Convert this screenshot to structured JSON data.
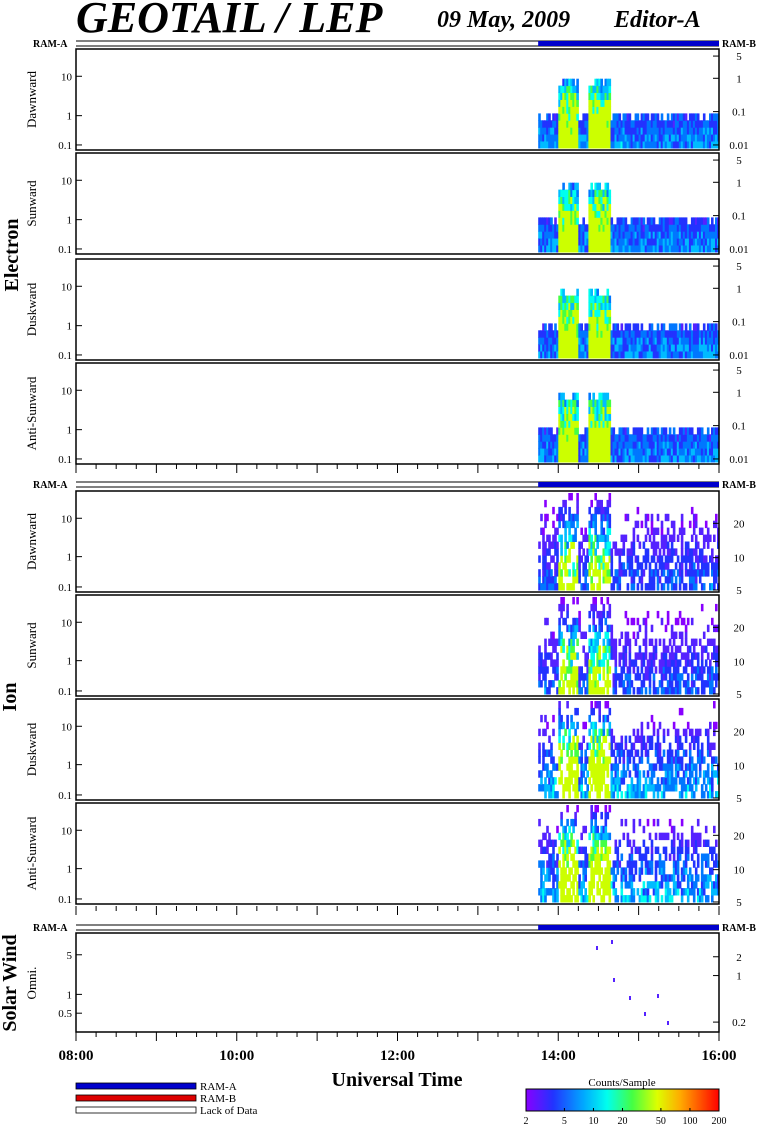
{
  "header": {
    "title": "GEOTAIL / LEP",
    "date": "09 May, 2009",
    "editor": "Editor-A"
  },
  "mode_labels": {
    "ram_a": "RAM-A",
    "ram_b": "RAM-B"
  },
  "sections": {
    "electron": "Electron",
    "ion": "Ion",
    "solar_wind": "Solar Wind"
  },
  "x_axis": {
    "label": "Universal Time",
    "ticks": [
      "08:00",
      "10:00",
      "12:00",
      "14:00",
      "16:00"
    ]
  },
  "legend": {
    "items": [
      {
        "label": "RAM-A",
        "color": "#0000cc"
      },
      {
        "label": "RAM-B",
        "color": "#dd0000"
      },
      {
        "label": "Lack of Data",
        "color": "#ffffff"
      }
    ]
  },
  "colorbar": {
    "title": "Counts/Sample",
    "ticks": [
      "2",
      "5",
      "10",
      "20",
      "50",
      "100",
      "200"
    ]
  },
  "chart_data": {
    "type": "heatmap",
    "time_range": [
      "08:00",
      "16:00"
    ],
    "data_start": "13:45",
    "electron_panels": [
      {
        "name": "Dawnward",
        "left_ticks": [
          "10",
          "1",
          "0.1"
        ],
        "right_ticks": [
          "5",
          "1",
          "0.1",
          "0.01"
        ]
      },
      {
        "name": "Sunward",
        "left_ticks": [
          "10",
          "1",
          "0.1"
        ],
        "right_ticks": [
          "5",
          "1",
          "0.1",
          "0.01"
        ]
      },
      {
        "name": "Duskward",
        "left_ticks": [
          "10",
          "1",
          "0.1"
        ],
        "right_ticks": [
          "5",
          "1",
          "0.1",
          "0.01"
        ]
      },
      {
        "name": "Anti-Sunward",
        "left_ticks": [
          "10",
          "1",
          "0.1"
        ],
        "right_ticks": [
          "5",
          "1",
          "0.1",
          "0.01"
        ]
      }
    ],
    "ion_panels": [
      {
        "name": "Dawnward",
        "left_ticks": [
          "10",
          "1",
          "0.1"
        ],
        "right_ticks": [
          "20",
          "10",
          "5"
        ]
      },
      {
        "name": "Sunward",
        "left_ticks": [
          "10",
          "1",
          "0.1"
        ],
        "right_ticks": [
          "20",
          "10",
          "5"
        ]
      },
      {
        "name": "Duskward",
        "left_ticks": [
          "10",
          "1",
          "0.1"
        ],
        "right_ticks": [
          "20",
          "10",
          "5"
        ]
      },
      {
        "name": "Anti-Sunward",
        "left_ticks": [
          "10",
          "1",
          "0.1"
        ],
        "right_ticks": [
          "20",
          "10",
          "5"
        ]
      }
    ],
    "solar_wind_panel": {
      "name": "Omni.",
      "left_ticks": [
        "5",
        "1",
        "0.5"
      ],
      "right_ticks": [
        "2",
        "1",
        "0.2"
      ]
    }
  }
}
